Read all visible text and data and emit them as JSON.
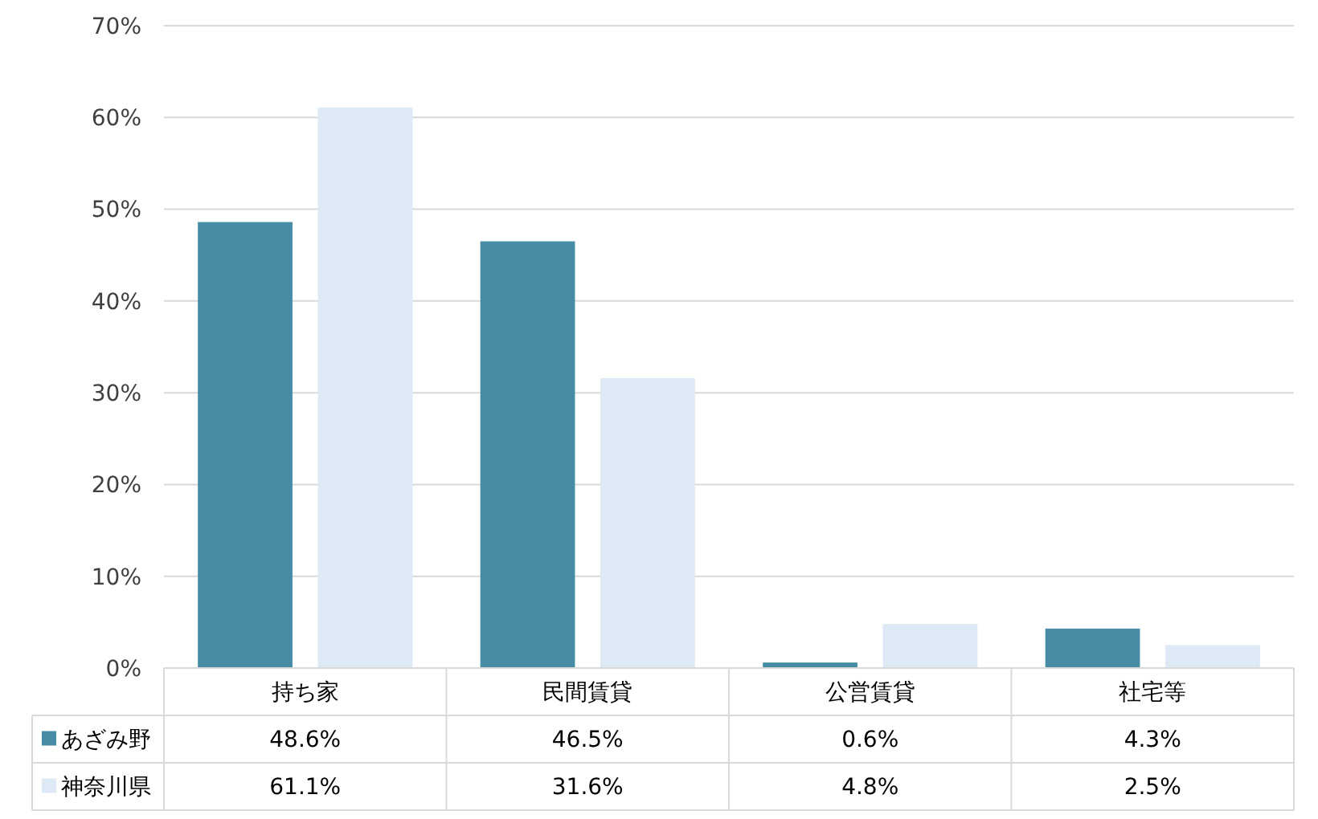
{
  "chart_data": {
    "type": "bar",
    "categories": [
      "持ち家",
      "民間賃貸",
      "公営賃貸",
      "社宅等"
    ],
    "series": [
      {
        "name": "あざみ野",
        "color": "#468ca5",
        "values": [
          48.6,
          46.5,
          0.6,
          4.3
        ],
        "value_labels": [
          "48.6%",
          "46.5%",
          "0.6%",
          "4.3%"
        ]
      },
      {
        "name": "神奈川県",
        "color": "#dde9f5",
        "values": [
          61.1,
          31.6,
          4.8,
          2.5
        ],
        "value_labels": [
          "61.1%",
          "31.6%",
          "4.8%",
          "2.5%"
        ]
      }
    ],
    "ylim": [
      0,
      70
    ],
    "yticks": [
      {
        "value": 0,
        "label": "0%"
      },
      {
        "value": 10,
        "label": "10%"
      },
      {
        "value": 20,
        "label": "20%"
      },
      {
        "value": 30,
        "label": "30%"
      },
      {
        "value": 40,
        "label": "40%"
      },
      {
        "value": 50,
        "label": "50%"
      },
      {
        "value": 60,
        "label": "60%"
      },
      {
        "value": 70,
        "label": "70%"
      }
    ],
    "grid": "y",
    "legend": "bottom"
  }
}
